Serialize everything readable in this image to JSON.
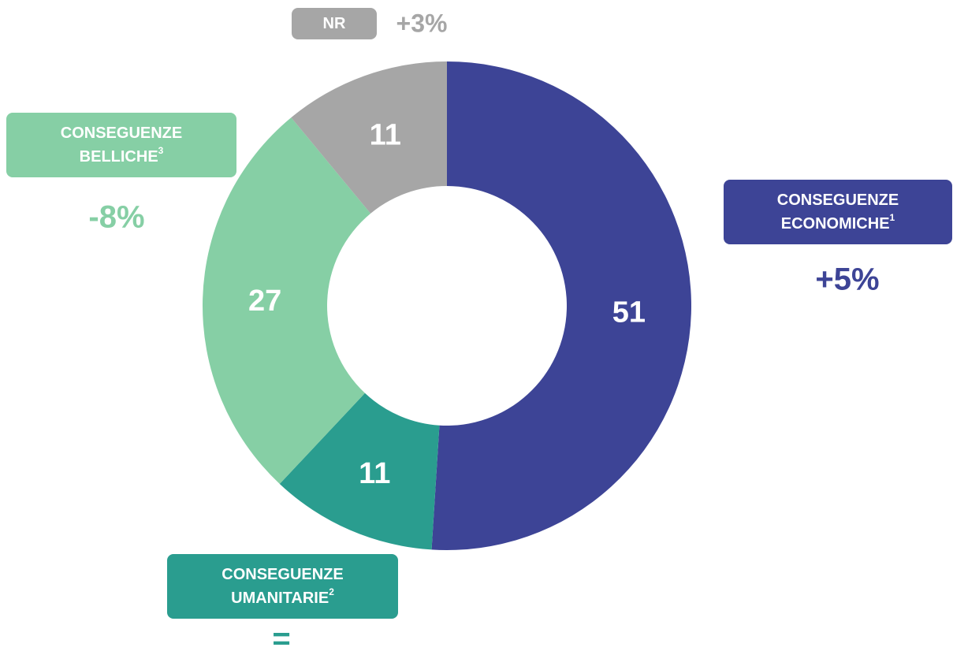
{
  "chart_data": {
    "type": "pie",
    "categories": [
      [
        "CONSEGUENZE",
        "ECONOMICHE"
      ],
      [
        "CONSEGUENZE",
        "UMANITARIE"
      ],
      [
        "CONSEGUENZE",
        "BELLICHE"
      ],
      [
        "NR"
      ]
    ],
    "footnotes": [
      "1",
      "2",
      "3",
      null
    ],
    "values": [
      51,
      11,
      27,
      11
    ],
    "colors": [
      "#3d4496",
      "#2a9d8f",
      "#86cfa5",
      "#a6a6a6"
    ],
    "change_labels": [
      "+5%",
      "=",
      "-8%",
      "+3%"
    ]
  }
}
